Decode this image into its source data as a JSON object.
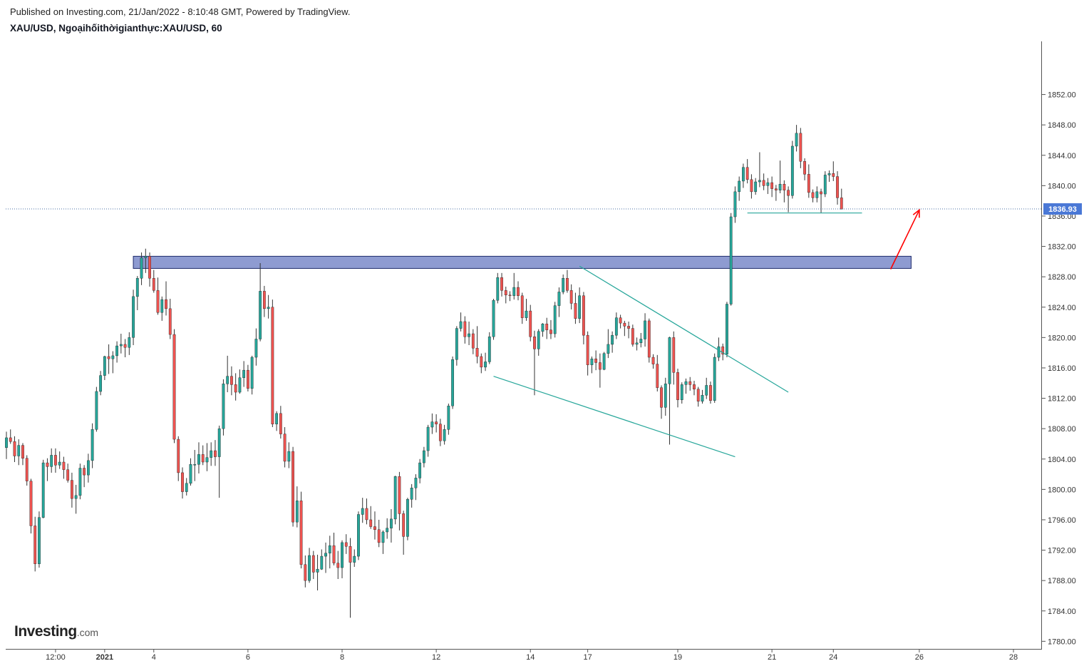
{
  "header": {
    "published": "Published on Investing.com, 21/Jan/2022 - 8:10:48 GMT, Powered by TradingView.",
    "symbol": "XAU/USD, Ngoạihốithờigianthực:XAU/USD, 60"
  },
  "logo": {
    "brand": "Investing",
    "suffix": ".com"
  },
  "colors": {
    "up": "#26a69a",
    "down": "#ef5350",
    "wick": "#333333",
    "zone": "#8e9bd1",
    "trendline": "#26a69a",
    "arrow": "#ff0000",
    "price_tag": "#4a78d6"
  },
  "chart_data": {
    "type": "candlestick",
    "timeframe": "60",
    "ylim": [
      1779,
      1859
    ],
    "y_ticks": [
      "1780.00",
      "1784.00",
      "1788.00",
      "1792.00",
      "1796.00",
      "1800.00",
      "1804.00",
      "1808.00",
      "1812.00",
      "1816.00",
      "1820.00",
      "1824.00",
      "1828.00",
      "1832.00",
      "1836.00",
      "1840.00",
      "1844.00",
      "1848.00",
      "1852.00"
    ],
    "x_ticks": [
      {
        "label": "12:00",
        "idx": 12
      },
      {
        "label": "2021",
        "idx": 24
      },
      {
        "label": "4",
        "idx": 36
      },
      {
        "label": "6",
        "idx": 59
      },
      {
        "label": "8",
        "idx": 82
      },
      {
        "label": "12",
        "idx": 105
      },
      {
        "label": "14",
        "idx": 128
      },
      {
        "label": "17",
        "idx": 142
      },
      {
        "label": "19",
        "idx": 164
      },
      {
        "label": "21",
        "idx": 187
      },
      {
        "label": "24",
        "idx": 202
      },
      {
        "label": "26",
        "idx": 223
      },
      {
        "label": "28",
        "idx": 246
      }
    ],
    "current_price": {
      "label": "1836.93",
      "value": 1836.93
    },
    "resistance_zone": {
      "start_idx": 31,
      "end_idx": 221,
      "low": 1829.1,
      "high": 1830.7
    },
    "support_line": {
      "start_idx": 181,
      "end_idx": 209,
      "value": 1836.4
    },
    "trendlines": [
      {
        "start": [
          140,
          1829.4
        ],
        "end": [
          191,
          1812.8
        ]
      },
      {
        "start": [
          119,
          1814.9
        ],
        "end": [
          178,
          1804.3
        ]
      }
    ],
    "arrow": {
      "start": [
        216,
        1829.0
      ],
      "end": [
        223,
        1836.8
      ]
    },
    "ohlc": [
      [
        1805.5,
        1807.6,
        1804.0,
        1806.8
      ],
      [
        1806.8,
        1807.9,
        1806.0,
        1806.3
      ],
      [
        1806.3,
        1807.0,
        1803.6,
        1804.4
      ],
      [
        1804.4,
        1806.6,
        1803.2,
        1805.8
      ],
      [
        1805.8,
        1806.1,
        1803.2,
        1804.1
      ],
      [
        1804.1,
        1804.5,
        1800.5,
        1801.1
      ],
      [
        1801.1,
        1801.4,
        1794.2,
        1795.2
      ],
      [
        1795.2,
        1796.4,
        1789.2,
        1790.2
      ],
      [
        1790.2,
        1797.1,
        1789.7,
        1796.3
      ],
      [
        1796.3,
        1803.9,
        1796.2,
        1803.5
      ],
      [
        1803.5,
        1804.1,
        1801.1,
        1803.0
      ],
      [
        1803.0,
        1805.4,
        1802.2,
        1804.5
      ],
      [
        1804.5,
        1805.4,
        1802.2,
        1803.2
      ],
      [
        1803.2,
        1805.0,
        1802.7,
        1803.6
      ],
      [
        1803.6,
        1804.3,
        1801.4,
        1802.6
      ],
      [
        1802.6,
        1803.4,
        1800.9,
        1801.2
      ],
      [
        1801.2,
        1802.2,
        1797.6,
        1798.8
      ],
      [
        1798.8,
        1800.6,
        1796.8,
        1799.2
      ],
      [
        1799.2,
        1803.4,
        1798.7,
        1802.8
      ],
      [
        1802.8,
        1803.2,
        1800.3,
        1801.9
      ],
      [
        1801.9,
        1804.7,
        1800.9,
        1803.8
      ],
      [
        1803.8,
        1808.7,
        1802.8,
        1807.9
      ],
      [
        1807.9,
        1813.5,
        1807.6,
        1812.9
      ],
      [
        1812.9,
        1815.6,
        1812.4,
        1815.0
      ],
      [
        1815.0,
        1817.6,
        1814.4,
        1817.5
      ],
      [
        1817.5,
        1819.1,
        1815.2,
        1817.2
      ],
      [
        1817.2,
        1818.2,
        1815.3,
        1817.6
      ],
      [
        1817.6,
        1819.5,
        1816.7,
        1818.9
      ],
      [
        1818.9,
        1820.5,
        1817.9,
        1819.1
      ],
      [
        1819.1,
        1819.8,
        1817.4,
        1818.7
      ],
      [
        1818.7,
        1820.7,
        1817.7,
        1820.0
      ],
      [
        1820.0,
        1826.3,
        1819.0,
        1825.4
      ],
      [
        1825.4,
        1828.1,
        1823.6,
        1827.8
      ],
      [
        1827.8,
        1831.2,
        1826.9,
        1830.5
      ],
      [
        1830.5,
        1831.7,
        1828.5,
        1830.7
      ],
      [
        1830.7,
        1831.2,
        1826.7,
        1827.8
      ],
      [
        1827.8,
        1828.9,
        1825.9,
        1826.2
      ],
      [
        1826.2,
        1827.9,
        1823.0,
        1823.3
      ],
      [
        1823.3,
        1825.4,
        1822.2,
        1825.0
      ],
      [
        1825.0,
        1827.4,
        1822.9,
        1823.8
      ],
      [
        1823.8,
        1825.1,
        1819.8,
        1820.4
      ],
      [
        1820.4,
        1821.1,
        1806.1,
        1806.6
      ],
      [
        1806.6,
        1807.0,
        1801.1,
        1802.2
      ],
      [
        1802.2,
        1802.9,
        1798.8,
        1799.7
      ],
      [
        1799.7,
        1801.5,
        1799.2,
        1800.8
      ],
      [
        1800.8,
        1804.1,
        1800.5,
        1803.3
      ],
      [
        1803.3,
        1805.2,
        1801.1,
        1803.3
      ],
      [
        1803.3,
        1806.2,
        1802.1,
        1804.6
      ],
      [
        1804.6,
        1805.8,
        1803.2,
        1803.6
      ],
      [
        1803.6,
        1806.1,
        1802.4,
        1804.2
      ],
      [
        1804.2,
        1806.2,
        1803.1,
        1805.1
      ],
      [
        1805.1,
        1806.5,
        1803.1,
        1804.3
      ],
      [
        1804.3,
        1808.4,
        1798.9,
        1808.0
      ],
      [
        1808.0,
        1814.5,
        1807.1,
        1813.9
      ],
      [
        1813.9,
        1817.6,
        1812.8,
        1814.9
      ],
      [
        1814.9,
        1816.2,
        1812.4,
        1813.8
      ],
      [
        1813.8,
        1815.3,
        1811.7,
        1812.8
      ],
      [
        1812.8,
        1815.8,
        1812.6,
        1814.7
      ],
      [
        1814.7,
        1816.9,
        1813.5,
        1815.7
      ],
      [
        1815.7,
        1816.4,
        1812.9,
        1813.3
      ],
      [
        1813.3,
        1817.6,
        1812.5,
        1817.4
      ],
      [
        1817.4,
        1821.2,
        1816.3,
        1819.8
      ],
      [
        1819.8,
        1829.8,
        1819.5,
        1826.1
      ],
      [
        1826.1,
        1826.8,
        1822.7,
        1823.8
      ],
      [
        1823.8,
        1825.6,
        1822.5,
        1824.0
      ],
      [
        1824.0,
        1825.0,
        1808.2,
        1808.6
      ],
      [
        1808.6,
        1810.3,
        1807.7,
        1810.0
      ],
      [
        1810.0,
        1811.0,
        1806.7,
        1807.3
      ],
      [
        1807.3,
        1808.2,
        1802.9,
        1803.7
      ],
      [
        1803.7,
        1806.2,
        1802.8,
        1805.0
      ],
      [
        1805.0,
        1805.6,
        1795.1,
        1795.7
      ],
      [
        1795.7,
        1800.4,
        1795.0,
        1798.5
      ],
      [
        1798.5,
        1799.7,
        1789.6,
        1790.1
      ],
      [
        1790.1,
        1791.3,
        1787.1,
        1788.0
      ],
      [
        1788.0,
        1792.3,
        1787.7,
        1791.3
      ],
      [
        1791.3,
        1791.9,
        1788.2,
        1789.1
      ],
      [
        1789.1,
        1791.4,
        1786.7,
        1789.5
      ],
      [
        1789.5,
        1792.1,
        1789.4,
        1791.2
      ],
      [
        1791.2,
        1793.0,
        1789.0,
        1791.6
      ],
      [
        1791.6,
        1793.9,
        1789.6,
        1792.6
      ],
      [
        1792.6,
        1794.3,
        1790.0,
        1790.3
      ],
      [
        1790.3,
        1791.9,
        1788.2,
        1789.7
      ],
      [
        1789.7,
        1793.3,
        1788.3,
        1793.0
      ],
      [
        1793.0,
        1794.1,
        1791.5,
        1792.5
      ],
      [
        1792.5,
        1793.6,
        1783.1,
        1790.4
      ],
      [
        1790.4,
        1792.1,
        1789.8,
        1791.2
      ],
      [
        1791.2,
        1797.1,
        1790.7,
        1796.7
      ],
      [
        1796.7,
        1798.9,
        1795.6,
        1797.5
      ],
      [
        1797.5,
        1798.8,
        1795.4,
        1796.0
      ],
      [
        1796.0,
        1797.8,
        1794.8,
        1795.1
      ],
      [
        1795.1,
        1797.1,
        1793.4,
        1794.7
      ],
      [
        1794.7,
        1796.0,
        1792.4,
        1793.0
      ],
      [
        1793.0,
        1794.6,
        1791.5,
        1794.4
      ],
      [
        1794.4,
        1796.2,
        1793.5,
        1794.9
      ],
      [
        1794.9,
        1797.4,
        1793.0,
        1796.1
      ],
      [
        1796.1,
        1801.8,
        1795.4,
        1801.7
      ],
      [
        1801.7,
        1802.3,
        1794.6,
        1796.8
      ],
      [
        1796.8,
        1797.2,
        1791.4,
        1793.8
      ],
      [
        1793.8,
        1798.9,
        1793.3,
        1798.7
      ],
      [
        1798.7,
        1800.7,
        1797.6,
        1800.2
      ],
      [
        1800.2,
        1802.0,
        1798.6,
        1801.5
      ],
      [
        1801.5,
        1804.0,
        1800.8,
        1803.5
      ],
      [
        1803.5,
        1805.6,
        1802.9,
        1805.1
      ],
      [
        1805.1,
        1808.5,
        1804.3,
        1808.2
      ],
      [
        1808.2,
        1810.0,
        1807.3,
        1808.9
      ],
      [
        1808.9,
        1809.9,
        1807.5,
        1808.6
      ],
      [
        1808.6,
        1809.3,
        1805.7,
        1806.4
      ],
      [
        1806.4,
        1808.5,
        1805.9,
        1807.9
      ],
      [
        1807.9,
        1811.3,
        1807.2,
        1811.0
      ],
      [
        1811.0,
        1817.5,
        1810.6,
        1817.1
      ],
      [
        1817.1,
        1821.5,
        1816.3,
        1821.2
      ],
      [
        1821.2,
        1823.3,
        1820.8,
        1822.1
      ],
      [
        1822.1,
        1822.8,
        1819.2,
        1820.1
      ],
      [
        1820.1,
        1822.1,
        1819.0,
        1820.5
      ],
      [
        1820.5,
        1821.1,
        1817.8,
        1818.6
      ],
      [
        1818.6,
        1821.5,
        1816.6,
        1817.5
      ],
      [
        1817.5,
        1817.9,
        1815.3,
        1816.1
      ],
      [
        1816.1,
        1818.0,
        1815.6,
        1816.8
      ],
      [
        1816.8,
        1820.7,
        1816.5,
        1820.1
      ],
      [
        1820.1,
        1825.1,
        1819.7,
        1824.9
      ],
      [
        1824.9,
        1828.5,
        1824.5,
        1827.9
      ],
      [
        1827.9,
        1828.5,
        1825.4,
        1826.2
      ],
      [
        1826.2,
        1826.7,
        1824.5,
        1825.6
      ],
      [
        1825.6,
        1826.1,
        1824.8,
        1825.5
      ],
      [
        1825.5,
        1828.5,
        1825.0,
        1826.6
      ],
      [
        1826.6,
        1827.4,
        1824.9,
        1825.5
      ],
      [
        1825.5,
        1825.9,
        1821.8,
        1822.6
      ],
      [
        1822.6,
        1825.1,
        1822.2,
        1823.5
      ],
      [
        1823.5,
        1824.3,
        1819.5,
        1820.1
      ],
      [
        1820.1,
        1820.9,
        1812.4,
        1818.5
      ],
      [
        1818.5,
        1821.1,
        1817.6,
        1820.8
      ],
      [
        1820.8,
        1821.9,
        1820.1,
        1821.8
      ],
      [
        1821.8,
        1822.6,
        1819.8,
        1821.0
      ],
      [
        1821.0,
        1822.3,
        1819.8,
        1820.5
      ],
      [
        1820.5,
        1824.7,
        1820.0,
        1824.2
      ],
      [
        1824.2,
        1826.6,
        1822.7,
        1826.0
      ],
      [
        1826.0,
        1828.3,
        1825.7,
        1827.8
      ],
      [
        1827.8,
        1828.9,
        1825.9,
        1826.2
      ],
      [
        1826.2,
        1827.0,
        1823.7,
        1824.5
      ],
      [
        1824.5,
        1825.9,
        1821.8,
        1822.5
      ],
      [
        1822.5,
        1826.6,
        1821.9,
        1825.5
      ],
      [
        1825.5,
        1826.0,
        1819.1,
        1820.3
      ],
      [
        1820.3,
        1820.8,
        1815.0,
        1816.4
      ],
      [
        1816.4,
        1817.5,
        1815.3,
        1817.2
      ],
      [
        1817.2,
        1818.3,
        1815.7,
        1816.7
      ],
      [
        1816.7,
        1817.9,
        1813.4,
        1815.8
      ],
      [
        1815.8,
        1818.1,
        1815.7,
        1817.9
      ],
      [
        1817.9,
        1821.1,
        1817.3,
        1819.1
      ],
      [
        1819.1,
        1820.8,
        1818.0,
        1820.3
      ],
      [
        1820.3,
        1823.3,
        1819.8,
        1822.6
      ],
      [
        1822.6,
        1823.0,
        1821.2,
        1821.9
      ],
      [
        1821.9,
        1822.2,
        1820.2,
        1821.5
      ],
      [
        1821.5,
        1822.1,
        1819.9,
        1821.2
      ],
      [
        1821.2,
        1821.7,
        1818.8,
        1819.1
      ],
      [
        1819.1,
        1820.0,
        1818.3,
        1819.3
      ],
      [
        1819.3,
        1820.6,
        1818.7,
        1819.8
      ],
      [
        1819.8,
        1823.2,
        1818.8,
        1822.2
      ],
      [
        1822.2,
        1822.5,
        1816.7,
        1817.4
      ],
      [
        1817.4,
        1817.8,
        1815.9,
        1816.5
      ],
      [
        1816.5,
        1817.7,
        1812.9,
        1813.4
      ],
      [
        1813.4,
        1813.7,
        1809.3,
        1810.8
      ],
      [
        1810.8,
        1814.7,
        1809.7,
        1813.9
      ],
      [
        1813.9,
        1820.1,
        1805.9,
        1820.0
      ],
      [
        1820.0,
        1820.8,
        1813.8,
        1815.4
      ],
      [
        1815.4,
        1815.9,
        1810.8,
        1811.8
      ],
      [
        1811.8,
        1814.1,
        1811.3,
        1813.8
      ],
      [
        1813.8,
        1814.6,
        1812.6,
        1814.2
      ],
      [
        1814.2,
        1814.8,
        1813.0,
        1813.8
      ],
      [
        1813.8,
        1814.3,
        1812.4,
        1813.2
      ],
      [
        1813.2,
        1813.5,
        1810.9,
        1811.6
      ],
      [
        1811.6,
        1813.1,
        1811.3,
        1812.4
      ],
      [
        1812.4,
        1814.7,
        1811.9,
        1813.7
      ],
      [
        1813.7,
        1814.2,
        1811.3,
        1811.7
      ],
      [
        1811.7,
        1817.9,
        1811.4,
        1817.4
      ],
      [
        1817.4,
        1820.0,
        1816.9,
        1818.8
      ],
      [
        1818.8,
        1819.2,
        1817.0,
        1817.8
      ],
      [
        1817.8,
        1824.7,
        1817.4,
        1824.4
      ],
      [
        1824.4,
        1836.4,
        1824.2,
        1835.9
      ],
      [
        1835.9,
        1839.9,
        1835.1,
        1839.2
      ],
      [
        1839.2,
        1841.2,
        1838.0,
        1840.6
      ],
      [
        1840.6,
        1842.9,
        1839.7,
        1842.4
      ],
      [
        1842.4,
        1843.5,
        1840.3,
        1840.8
      ],
      [
        1840.8,
        1841.5,
        1838.3,
        1839.2
      ],
      [
        1839.2,
        1841.0,
        1838.8,
        1840.5
      ],
      [
        1840.5,
        1844.4,
        1839.8,
        1840.7
      ],
      [
        1840.7,
        1841.6,
        1839.4,
        1840.0
      ],
      [
        1840.0,
        1841.0,
        1838.9,
        1840.4
      ],
      [
        1840.4,
        1841.2,
        1838.5,
        1839.6
      ],
      [
        1839.6,
        1840.1,
        1838.0,
        1839.4
      ],
      [
        1839.4,
        1843.3,
        1839.0,
        1840.2
      ],
      [
        1840.2,
        1840.7,
        1837.8,
        1839.4
      ],
      [
        1839.4,
        1839.9,
        1836.5,
        1838.7
      ],
      [
        1838.7,
        1845.9,
        1838.3,
        1845.2
      ],
      [
        1845.2,
        1848.0,
        1844.5,
        1846.9
      ],
      [
        1846.9,
        1847.6,
        1842.3,
        1843.2
      ],
      [
        1843.2,
        1843.6,
        1840.7,
        1841.5
      ],
      [
        1841.5,
        1842.8,
        1838.4,
        1839.1
      ],
      [
        1839.1,
        1839.5,
        1837.8,
        1838.4
      ],
      [
        1838.4,
        1839.9,
        1837.8,
        1839.2
      ],
      [
        1839.2,
        1839.6,
        1836.4,
        1838.9
      ],
      [
        1838.9,
        1841.9,
        1838.5,
        1841.4
      ],
      [
        1841.4,
        1842.0,
        1840.5,
        1841.6
      ],
      [
        1841.6,
        1843.2,
        1840.6,
        1841.2
      ],
      [
        1841.2,
        1841.9,
        1837.5,
        1838.4
      ],
      [
        1838.4,
        1839.6,
        1836.9,
        1836.9
      ]
    ]
  }
}
